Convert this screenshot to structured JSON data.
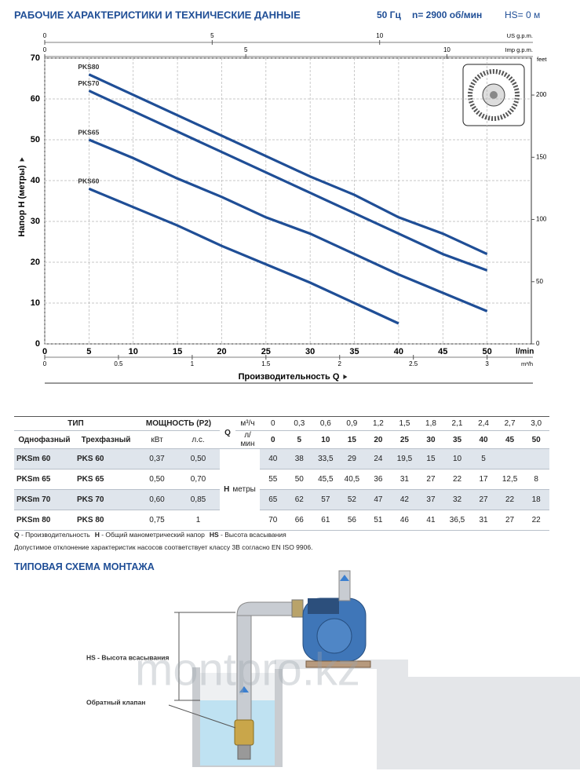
{
  "header": {
    "title": "РАБОЧИЕ ХАРАКТЕРИСТИКИ И ТЕХНИЧЕСКИЕ ДАННЫЕ",
    "frequency": "50 Гц",
    "speed": "n= 2900 об/мин",
    "suction": "HS= 0 м"
  },
  "chart_data": {
    "type": "line",
    "x_label": "Производительность Q",
    "y_label": "Напор H (метры)",
    "x_unit": "l/min",
    "x": [
      5,
      10,
      15,
      20,
      25,
      30,
      35,
      40,
      45,
      50
    ],
    "series": [
      {
        "name": "PKS80",
        "color": "#1f4e96",
        "values": [
          66,
          61,
          56,
          51,
          46,
          41,
          36.5,
          31,
          27,
          22
        ]
      },
      {
        "name": "PKS70",
        "color": "#1f4e96",
        "values": [
          62,
          57,
          52,
          47,
          42,
          37,
          32,
          27,
          22,
          18
        ]
      },
      {
        "name": "PKS65",
        "color": "#1f4e96",
        "values": [
          50,
          45.5,
          40.5,
          36,
          31,
          27,
          22,
          17,
          12.5,
          8
        ]
      },
      {
        "name": "PKS60",
        "color": "#1f4e96",
        "values": [
          38,
          33.5,
          29,
          24,
          19.5,
          15,
          10,
          5,
          null,
          null
        ]
      }
    ],
    "xlim": [
      0,
      55
    ],
    "xticks": [
      0,
      5,
      10,
      15,
      20,
      25,
      30,
      35,
      40,
      45,
      50
    ],
    "ylim": [
      0,
      70
    ],
    "yticks": [
      0,
      10,
      20,
      30,
      40,
      50,
      60,
      70
    ],
    "grid": true,
    "us_gpm_axis": {
      "label": "US g.p.m.",
      "lim": [
        0,
        14.53
      ],
      "ticks": [
        0,
        5,
        10
      ]
    },
    "imp_gpm_axis": {
      "label": "Imp g.p.m.",
      "lim": [
        0,
        12.1
      ],
      "ticks": [
        0,
        5,
        10
      ]
    },
    "feet_axis": {
      "label": "feet",
      "lim": [
        0,
        229.7
      ],
      "ticks": [
        0,
        50,
        100,
        150,
        200
      ]
    },
    "m3h_axis": {
      "label": "m³/h",
      "lim": [
        0,
        3.3
      ],
      "ticks": [
        0,
        0.5,
        1,
        1.5,
        2,
        2.5,
        3
      ]
    }
  },
  "table": {
    "header": {
      "type": "ТИП",
      "power": "МОЩНОСТЬ (P2)",
      "q": "Q",
      "single_phase": "Однофазный",
      "three_phase": "Трехфазный",
      "kw": "кВт",
      "hp": "л.с.",
      "m3h": "м³/ч",
      "lmin": "л/мин",
      "h": "H",
      "h_unit": "метры"
    },
    "m3h_values": [
      "0",
      "0,3",
      "0,6",
      "0,9",
      "1,2",
      "1,5",
      "1,8",
      "2,1",
      "2,4",
      "2,7",
      "3,0"
    ],
    "lmin_values": [
      0,
      5,
      10,
      15,
      20,
      25,
      30,
      35,
      40,
      45,
      50
    ],
    "rows": [
      {
        "single": "PKSm 60",
        "three": "PKS 60",
        "kw": "0,37",
        "hp": "0,50",
        "h": [
          40,
          38,
          "33,5",
          29,
          24,
          "19,5",
          15,
          10,
          5
        ]
      },
      {
        "single": "PKSm 65",
        "three": "PKS 65",
        "kw": "0,50",
        "hp": "0,70",
        "h": [
          55,
          50,
          "45,5",
          "40,5",
          36,
          31,
          27,
          22,
          17,
          "12,5",
          8
        ]
      },
      {
        "single": "PKSm 70",
        "three": "PKS 70",
        "kw": "0,60",
        "hp": "0,85",
        "h": [
          65,
          62,
          57,
          52,
          47,
          42,
          37,
          32,
          27,
          22,
          18
        ]
      },
      {
        "single": "PKSm 80",
        "three": "PKS 80",
        "kw": "0,75",
        "hp": "1",
        "h": [
          70,
          66,
          61,
          56,
          51,
          46,
          41,
          "36,5",
          31,
          27,
          22
        ]
      }
    ]
  },
  "notes": {
    "legend": [
      {
        "term": "Q",
        "text": " - Производительность"
      },
      {
        "term": "H",
        "text": " - Общий манометрический напор"
      },
      {
        "term": "HS",
        "text": " - Высота всасывания"
      }
    ],
    "tolerance": "Допустимое отклонение характеристик насосов соответствует классу 3В согласно EN ISO 9906."
  },
  "installation": {
    "title": "ТИПОВАЯ СХЕМА МОНТАЖА",
    "hs_label": "HS - Высота всасывания",
    "valve_label": "Обратный клапан",
    "watermark": "montpro.kz"
  }
}
